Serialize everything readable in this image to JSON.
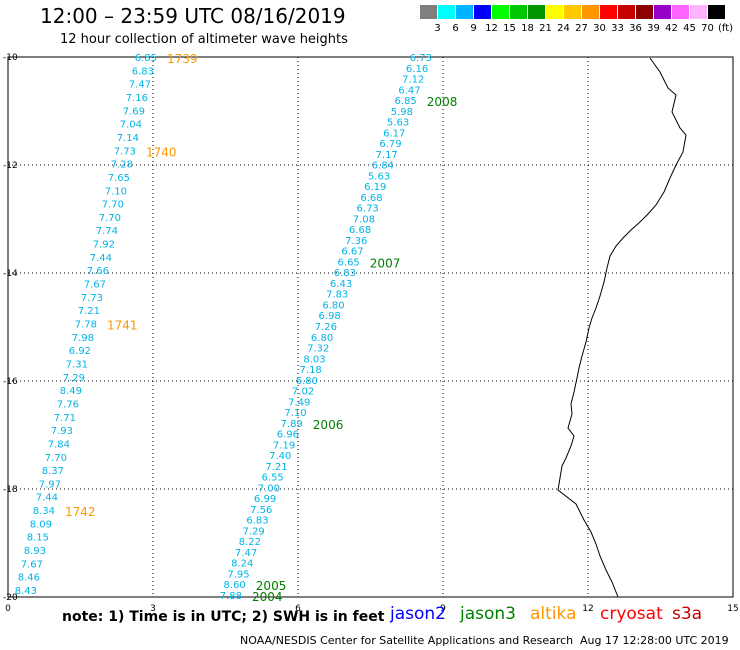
{
  "header": {
    "title": "12:00 – 23:59 UTC 08/16/2019",
    "subtitle": "12 hour collection of altimeter wave heights"
  },
  "scale": {
    "labels": [
      "3",
      "6",
      "9",
      "12",
      "15",
      "18",
      "21",
      "24",
      "27",
      "30",
      "33",
      "36",
      "39",
      "42",
      "45",
      "70"
    ],
    "unit": "(ft)",
    "colors": [
      "#7f7f7f",
      "#00ffff",
      "#00b4ff",
      "#0000ff",
      "#00ff00",
      "#00c800",
      "#009600",
      "#ffff00",
      "#ffc800",
      "#ff9600",
      "#ff0000",
      "#c80000",
      "#8c0000",
      "#9600c8",
      "#ff64ff",
      "#ffb4ff",
      "#000000"
    ]
  },
  "map": {
    "y_labels": [
      "-10",
      "-12",
      "-14",
      "-16",
      "-18",
      "-20"
    ],
    "x_labels": [
      "0",
      "3",
      "6",
      "9",
      "12",
      "15"
    ]
  },
  "tracks": [
    {
      "id": "1739",
      "satellite": "altika",
      "color": "#ff9600",
      "label_row": 0,
      "start": [
        157,
        57
      ],
      "end": [
        37,
        590
      ],
      "values": [
        "6.85",
        "6.83",
        "7.47",
        "7.16",
        "7.69",
        "7.04",
        "7.14",
        "7.73",
        "7.28",
        "7.65",
        "7.10",
        "7.70",
        "7.70",
        "7.74",
        "7.92",
        "7.44",
        "7.66",
        "7.67",
        "7.73",
        "7.21",
        "7.78",
        "7.98",
        "6.92",
        "7.31",
        "7.29",
        "8.49",
        "7.76",
        "7.71",
        "7.93",
        "7.84",
        "7.70",
        "8.37",
        "7.97",
        "7.44",
        "8.34",
        "8.09",
        "8.15",
        "8.93",
        "7.67",
        "8.46",
        "8.43"
      ],
      "cycles": [
        {
          "label": "1739",
          "row": 0
        },
        {
          "label": "1740",
          "row": 7
        },
        {
          "label": "1741",
          "row": 20
        },
        {
          "label": "1742",
          "row": 34
        }
      ]
    },
    {
      "id": "2008",
      "satellite": "jason3",
      "color": "#008000",
      "start": [
        432,
        57
      ],
      "end": [
        242,
        595
      ],
      "values": [
        "6.73",
        "6.16",
        "7.12",
        "6.47",
        "6.85",
        "5.98",
        "5.63",
        "6.17",
        "6.79",
        "7.17",
        "6.84",
        "5.63",
        "6.19",
        "6.68",
        "6.73",
        "7.08",
        "6.68",
        "7.36",
        "6.67",
        "6.65",
        "6.83",
        "6.43",
        "7.83",
        "6.80",
        "6.98",
        "7.26",
        "6.80",
        "7.32",
        "8.03",
        "7.18",
        "6.80",
        "7.02",
        "7.49",
        "7.10",
        "7.89",
        "6.96",
        "7.19",
        "7.40",
        "7.21",
        "6.55",
        "7.00",
        "6.99",
        "7.56",
        "6.83",
        "7.29",
        "8.22",
        "7.47",
        "8.24",
        "7.95",
        "8.60",
        "7.88"
      ],
      "cycles": [
        {
          "label": "2008",
          "row": 4
        },
        {
          "label": "2007",
          "row": 19
        },
        {
          "label": "2006",
          "row": 34
        },
        {
          "label": "2005",
          "row": 49
        },
        {
          "label": "2004",
          "row": 50
        }
      ]
    }
  ],
  "footer": {
    "note": "note:  1) Time is in UTC;  2) SWH is in feet",
    "satellites": [
      {
        "name": "jason2",
        "color": "#0000ff"
      },
      {
        "name": "jason3",
        "color": "#008000"
      },
      {
        "name": "altika",
        "color": "#ff9600"
      },
      {
        "name": "cryosat",
        "color": "#ff0000"
      },
      {
        "name": "s3a",
        "color": "#c80000"
      }
    ],
    "credit": "NOAA/NESDIS Center for Satellite Applications and Research",
    "timestamp": "Aug 17 12:28:00 UTC 2019"
  }
}
